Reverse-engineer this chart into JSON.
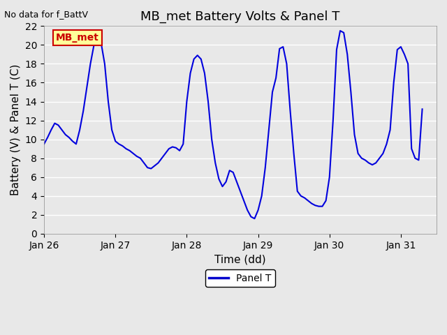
{
  "title": "MB_met Battery Volts & Panel T",
  "xlabel": "Time (dd)",
  "ylabel": "Battery (V) & Panel T (C)",
  "top_left_text": "No data for f_BattV",
  "legend_label": "Panel T",
  "legend_color": "#0000cc",
  "box_label": "MB_met",
  "box_facecolor": "#ffff99",
  "box_edgecolor": "#cc0000",
  "box_textcolor": "#cc0000",
  "ylim": [
    0,
    22
  ],
  "yticks": [
    0,
    2,
    4,
    6,
    8,
    10,
    12,
    14,
    16,
    18,
    20,
    22
  ],
  "xlim_days": [
    26.0,
    31.5
  ],
  "xtick_days": [
    26,
    27,
    28,
    29,
    30,
    31
  ],
  "xtick_labels": [
    "Jan 26",
    "Jan 27",
    "Jan 28",
    "Jan 29",
    "Jan 30",
    "Jan 31"
  ],
  "line_color": "#0000dd",
  "line_width": 1.5,
  "bg_color": "#e8e8e8",
  "plot_bg_color": "#e8e8e8",
  "grid_color": "#ffffff",
  "title_fontsize": 13,
  "axis_label_fontsize": 11,
  "tick_fontsize": 10,
  "panel_t_x": [
    26.0,
    26.05,
    26.1,
    26.15,
    26.2,
    26.25,
    26.3,
    26.35,
    26.4,
    26.45,
    26.5,
    26.55,
    26.6,
    26.65,
    26.7,
    26.75,
    26.8,
    26.85,
    26.9,
    26.95,
    27.0,
    27.05,
    27.1,
    27.15,
    27.2,
    27.25,
    27.3,
    27.35,
    27.4,
    27.45,
    27.5,
    27.55,
    27.6,
    27.65,
    27.7,
    27.75,
    27.8,
    27.85,
    27.9,
    27.95,
    28.0,
    28.05,
    28.1,
    28.15,
    28.2,
    28.25,
    28.3,
    28.35,
    28.4,
    28.45,
    28.5,
    28.55,
    28.6,
    28.65,
    28.7,
    28.75,
    28.8,
    28.85,
    28.9,
    28.95,
    29.0,
    29.05,
    29.1,
    29.15,
    29.2,
    29.25,
    29.3,
    29.35,
    29.4,
    29.45,
    29.5,
    29.55,
    29.6,
    29.65,
    29.7,
    29.75,
    29.8,
    29.85,
    29.9,
    29.95,
    30.0,
    30.05,
    30.1,
    30.15,
    30.2,
    30.25,
    30.3,
    30.35,
    30.4,
    30.45,
    30.5,
    30.55,
    30.6,
    30.65,
    30.7,
    30.75,
    30.8,
    30.85,
    30.9,
    30.95,
    31.0,
    31.05,
    31.1,
    31.15,
    31.2,
    31.25,
    31.3
  ],
  "panel_t_y": [
    9.5,
    10.2,
    11.0,
    11.7,
    11.5,
    11.0,
    10.5,
    10.2,
    9.8,
    9.5,
    11.0,
    13.0,
    15.5,
    18.0,
    20.0,
    20.4,
    20.2,
    18.0,
    14.0,
    11.0,
    9.8,
    9.5,
    9.3,
    9.0,
    8.8,
    8.5,
    8.2,
    8.0,
    7.5,
    7.0,
    6.9,
    7.2,
    7.5,
    8.0,
    8.5,
    9.0,
    9.2,
    9.1,
    8.8,
    9.5,
    14.0,
    17.0,
    18.5,
    18.9,
    18.5,
    17.0,
    14.0,
    10.0,
    7.5,
    5.8,
    5.0,
    5.5,
    6.7,
    6.5,
    5.5,
    4.5,
    3.5,
    2.5,
    1.8,
    1.6,
    2.5,
    4.0,
    7.0,
    11.0,
    15.0,
    16.5,
    19.6,
    19.8,
    18.0,
    13.0,
    8.5,
    4.5,
    4.0,
    3.8,
    3.5,
    3.2,
    3.0,
    2.9,
    2.9,
    3.5,
    6.0,
    12.0,
    19.5,
    21.5,
    21.3,
    19.0,
    15.0,
    10.5,
    8.5,
    8.0,
    7.8,
    7.5,
    7.3,
    7.5,
    8.0,
    8.5,
    9.5,
    11.0,
    16.0,
    19.5,
    19.8,
    19.0,
    18.0,
    9.0,
    8.0,
    7.8,
    13.2
  ]
}
